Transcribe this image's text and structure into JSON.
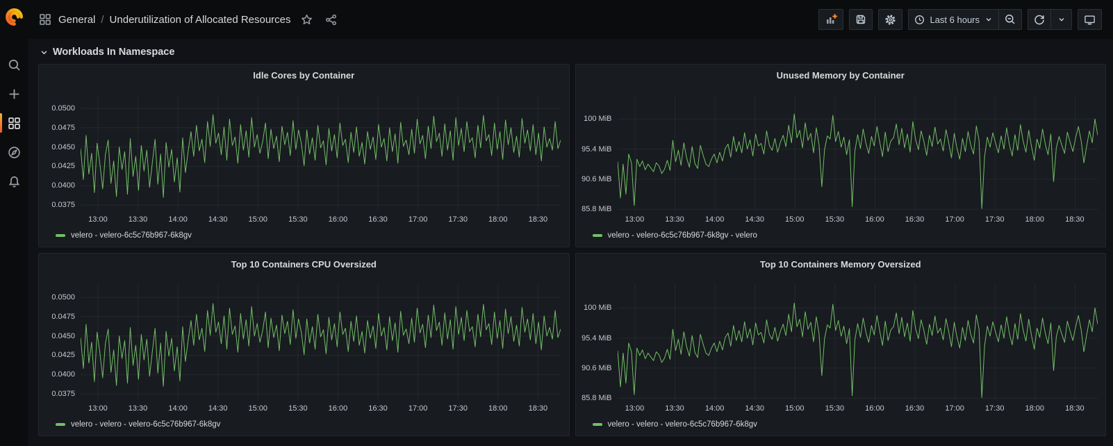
{
  "app": {
    "colors": {
      "page_bg": "#111217",
      "chrome_bg": "#0b0c0e",
      "panel_bg": "#181b1f",
      "accent_orange": "#FF8833",
      "series_green": "#73BF69",
      "text_primary": "#d8d9da"
    }
  },
  "nav": {
    "breadcrumb": {
      "section": "General",
      "separator": "/",
      "title": "Underutilization of Allocated Resources"
    },
    "toolbar": {
      "time_range": "Last 6 hours"
    }
  },
  "sidebar": {
    "items": [
      {
        "id": "search",
        "active": false
      },
      {
        "id": "create",
        "active": false
      },
      {
        "id": "dashboards",
        "active": true
      },
      {
        "id": "explore",
        "active": false
      },
      {
        "id": "alerting",
        "active": false
      }
    ]
  },
  "section": {
    "title": "Workloads In Namespace"
  },
  "series_pool": {
    "cpu": [
      0.0448,
      0.0408,
      0.0465,
      0.0415,
      0.0442,
      0.0391,
      0.0455,
      0.0428,
      0.0396,
      0.044,
      0.0459,
      0.0403,
      0.0432,
      0.0386,
      0.045,
      0.0421,
      0.0444,
      0.0389,
      0.0461,
      0.0412,
      0.0438,
      0.0394,
      0.0452,
      0.0419,
      0.0446,
      0.0398,
      0.043,
      0.046,
      0.0402,
      0.0441,
      0.0385,
      0.0456,
      0.0424,
      0.0447,
      0.0405,
      0.0436,
      0.0392,
      0.0462,
      0.0417,
      0.0445,
      0.047,
      0.0438,
      0.0478,
      0.0445,
      0.046,
      0.043,
      0.0483,
      0.0451,
      0.0492,
      0.0455,
      0.0468,
      0.044,
      0.0476,
      0.0433,
      0.0486,
      0.0452,
      0.0463,
      0.0429,
      0.0479,
      0.0446,
      0.0471,
      0.0437,
      0.0488,
      0.045,
      0.0466,
      0.0442,
      0.0457,
      0.0481,
      0.0435,
      0.0473,
      0.0448,
      0.0464,
      0.0431,
      0.0477,
      0.0453,
      0.0469,
      0.0439,
      0.0484,
      0.0447,
      0.0472,
      0.0455,
      0.0426,
      0.0472,
      0.0441,
      0.0462,
      0.0433,
      0.0478,
      0.0449,
      0.0458,
      0.0427,
      0.0474,
      0.0445,
      0.0466,
      0.0436,
      0.0481,
      0.0452,
      0.046,
      0.043,
      0.0469,
      0.0443,
      0.0476,
      0.0438,
      0.0456,
      0.0428,
      0.047,
      0.0447,
      0.0463,
      0.0434,
      0.0479,
      0.045,
      0.0461,
      0.0432,
      0.0475,
      0.0444,
      0.0467,
      0.0429,
      0.0482,
      0.0451,
      0.0459,
      0.044,
      0.0473,
      0.0442,
      0.0486,
      0.0454,
      0.0465,
      0.0435,
      0.0477,
      0.0448,
      0.049,
      0.0457,
      0.0468,
      0.0438,
      0.048,
      0.0446,
      0.0471,
      0.0433,
      0.0488,
      0.0452,
      0.0474,
      0.0444,
      0.0483,
      0.0456,
      0.0462,
      0.0436,
      0.0478,
      0.0449,
      0.0491,
      0.0458,
      0.0466,
      0.0439,
      0.0481,
      0.0447,
      0.047,
      0.0434,
      0.0485,
      0.0453,
      0.0475,
      0.0443,
      0.0464,
      0.0437,
      0.0487,
      0.0455,
      0.0472,
      0.0445,
      0.0479,
      0.044,
      0.0468,
      0.0432,
      0.0476,
      0.045,
      0.0461,
      0.0446,
      0.0483,
      0.0448,
      0.0459
    ],
    "mem": [
      93.4,
      87.6,
      93.0,
      88.2,
      94.6,
      93.2,
      86.4,
      93.8,
      92.6,
      93.5,
      92.1,
      93.0,
      92.4,
      91.8,
      93.2,
      92.7,
      91.5,
      92.2,
      93.6,
      92.0,
      96.8,
      93.4,
      95.2,
      92.8,
      96.4,
      94.0,
      92.5,
      95.8,
      93.1,
      92.3,
      96.0,
      94.4,
      93.0,
      92.6,
      93.8,
      94.6,
      93.2,
      94.9,
      93.5,
      95.5,
      96.2,
      94.1,
      97.4,
      95.0,
      96.6,
      94.8,
      98.0,
      95.4,
      96.9,
      94.3,
      97.8,
      95.9,
      96.3,
      94.6,
      98.3,
      96.0,
      95.2,
      97.1,
      94.9,
      96.5,
      97.6,
      95.8,
      99.2,
      96.4,
      101.0,
      97.2,
      98.4,
      95.6,
      99.6,
      96.8,
      97.9,
      94.8,
      98.8,
      96.1,
      89.4,
      95.3,
      97.5,
      97.0,
      100.8,
      96.6,
      98.2,
      95.7,
      97.3,
      94.5,
      96.9,
      86.2,
      95.1,
      97.7,
      95.5,
      98.6,
      96.3,
      94.7,
      97.4,
      95.9,
      99.0,
      96.5,
      94.2,
      98.1,
      95.0,
      96.7,
      97.2,
      99.4,
      96.1,
      98.7,
      95.6,
      97.8,
      94.9,
      99.8,
      96.9,
      95.3,
      98.3,
      96.6,
      94.4,
      97.6,
      95.8,
      98.9,
      96.2,
      97.0,
      95.1,
      98.5,
      96.4,
      94.0,
      97.9,
      95.5,
      93.8,
      97.1,
      95.0,
      98.2,
      96.0,
      94.6,
      99.1,
      96.8,
      85.9,
      94.2,
      97.3,
      95.7,
      98.0,
      96.3,
      94.8,
      97.5,
      95.4,
      98.8,
      96.1,
      94.3,
      97.7,
      95.2,
      99.3,
      96.6,
      94.9,
      98.4,
      95.8,
      93.6,
      97.0,
      95.5,
      98.6,
      96.2,
      94.5,
      97.8,
      90.2,
      95.6,
      97.4,
      96.0,
      94.7,
      98.1,
      96.5,
      95.0,
      97.2,
      99.0,
      96.7,
      93.2,
      95.9,
      98.3,
      96.4,
      100.2,
      97.6
    ]
  },
  "chart_data": [
    {
      "id": "idle-cores",
      "type": "line",
      "title": "Idle Cores by Container",
      "pool": "cpu",
      "color": "#73BF69",
      "legend": "velero - velero-6c5c76b967-6k8gv",
      "ylim": [
        0.0368,
        0.0517
      ],
      "y_ticks": [
        {
          "v": 0.05,
          "label": "0.0500"
        },
        {
          "v": 0.0475,
          "label": "0.0475"
        },
        {
          "v": 0.045,
          "label": "0.0450"
        },
        {
          "v": 0.0425,
          "label": "0.0425"
        },
        {
          "v": 0.04,
          "label": "0.0400"
        },
        {
          "v": 0.0375,
          "label": "0.0375"
        }
      ],
      "x_range": [
        "12:47",
        "18:47"
      ],
      "x_ticks": [
        "13:00",
        "13:30",
        "14:00",
        "14:30",
        "15:00",
        "15:30",
        "16:00",
        "16:30",
        "17:00",
        "17:30",
        "18:00",
        "18:30"
      ],
      "grid": true,
      "legend_position": "bottom-left"
    },
    {
      "id": "unused-memory",
      "type": "line",
      "title": "Unused Memory by Container",
      "pool": "mem",
      "color": "#73BF69",
      "legend": "velero - velero-6c5c76b967-6k8gv - velero",
      "ylim": [
        85.6,
        104.0
      ],
      "y_ticks": [
        {
          "v": 100.2,
          "label": "100 MiB"
        },
        {
          "v": 95.4,
          "label": "95.4 MiB"
        },
        {
          "v": 90.6,
          "label": "90.6 MiB"
        },
        {
          "v": 85.8,
          "label": "85.8 MiB"
        }
      ],
      "x_range": [
        "12:47",
        "18:47"
      ],
      "x_ticks": [
        "13:00",
        "13:30",
        "14:00",
        "14:30",
        "15:00",
        "15:30",
        "16:00",
        "16:30",
        "17:00",
        "17:30",
        "18:00",
        "18:30"
      ],
      "grid": true,
      "legend_position": "bottom-left"
    },
    {
      "id": "cpu-oversized",
      "type": "line",
      "title": "Top 10 Containers CPU Oversized",
      "pool": "cpu",
      "color": "#73BF69",
      "legend": "velero - velero - velero-6c5c76b967-6k8gv",
      "ylim": [
        0.0368,
        0.0517
      ],
      "y_ticks": [
        {
          "v": 0.05,
          "label": "0.0500"
        },
        {
          "v": 0.0475,
          "label": "0.0475"
        },
        {
          "v": 0.045,
          "label": "0.0450"
        },
        {
          "v": 0.0425,
          "label": "0.0425"
        },
        {
          "v": 0.04,
          "label": "0.0400"
        },
        {
          "v": 0.0375,
          "label": "0.0375"
        }
      ],
      "x_range": [
        "12:47",
        "18:47"
      ],
      "x_ticks": [
        "13:00",
        "13:30",
        "14:00",
        "14:30",
        "15:00",
        "15:30",
        "16:00",
        "16:30",
        "17:00",
        "17:30",
        "18:00",
        "18:30"
      ],
      "grid": true,
      "legend_position": "bottom-left"
    },
    {
      "id": "memory-oversized",
      "type": "line",
      "title": "Top 10 Containers Memory Oversized",
      "pool": "mem",
      "color": "#73BF69",
      "legend": "velero - velero - velero-6c5c76b967-6k8gv",
      "ylim": [
        85.6,
        104.0
      ],
      "y_ticks": [
        {
          "v": 100.2,
          "label": "100 MiB"
        },
        {
          "v": 95.4,
          "label": "95.4 MiB"
        },
        {
          "v": 90.6,
          "label": "90.6 MiB"
        },
        {
          "v": 85.8,
          "label": "85.8 MiB"
        }
      ],
      "x_range": [
        "12:47",
        "18:47"
      ],
      "x_ticks": [
        "13:00",
        "13:30",
        "14:00",
        "14:30",
        "15:00",
        "15:30",
        "16:00",
        "16:30",
        "17:00",
        "17:30",
        "18:00",
        "18:30"
      ],
      "grid": true,
      "legend_position": "bottom-left"
    }
  ]
}
